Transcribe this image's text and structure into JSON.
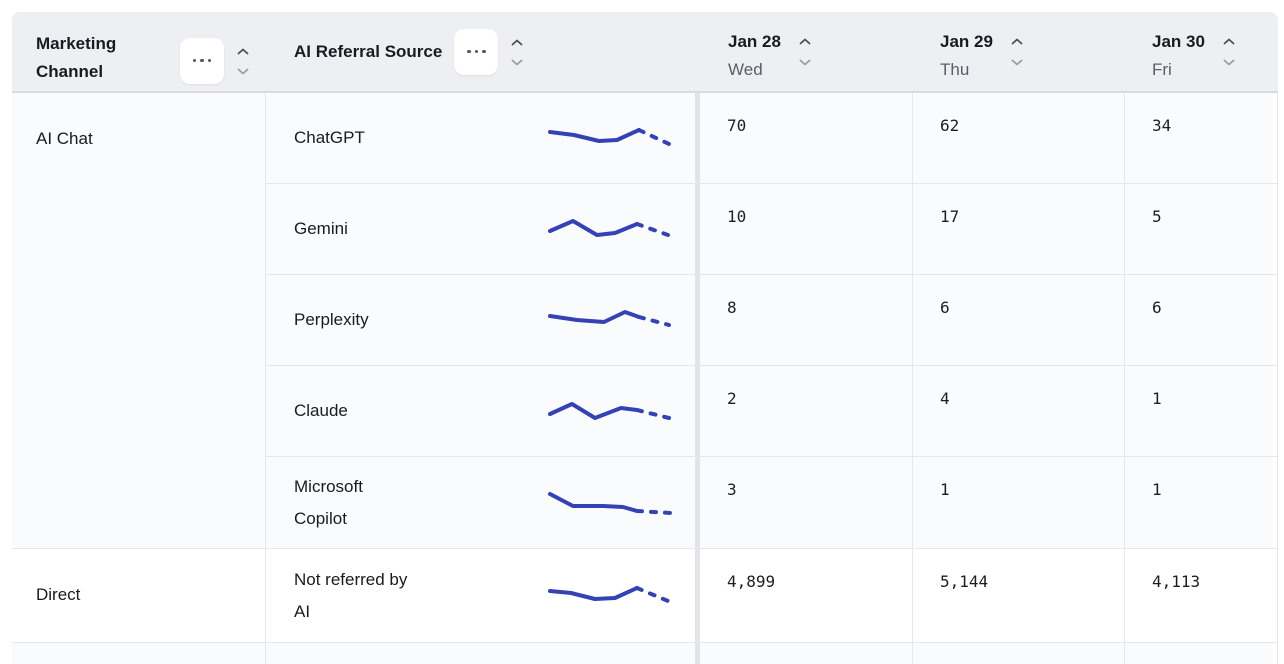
{
  "table": {
    "header": {
      "channel": {
        "label": "Marketing Channel"
      },
      "source": {
        "label": "AI Referral Source"
      },
      "dates": [
        {
          "date": "Jan 28",
          "day": "Wed"
        },
        {
          "date": "Jan 29",
          "day": "Thu"
        },
        {
          "date": "Jan 30",
          "day": "Fri"
        }
      ],
      "icons": {
        "more": "more-options-icon",
        "sort_up": "sort-ascending-icon",
        "sort_down": "sort-descending-icon"
      }
    },
    "groups": [
      {
        "channel": "AI Chat",
        "rows": [
          {
            "source": "ChatGPT",
            "values": [
              "70",
              "62",
              "34"
            ],
            "spark": {
              "solid": [
                [
                  3,
                  11
                ],
                [
                  27,
                  14
                ],
                [
                  52,
                  20
                ],
                [
                  70,
                  19
                ],
                [
                  92,
                  9
                ]
              ],
              "dashed": [
                [
                  92,
                  9
                ],
                [
                  122,
                  23
                ]
              ]
            }
          },
          {
            "source": "Gemini",
            "values": [
              "10",
              "17",
              "5"
            ],
            "spark": {
              "solid": [
                [
                  3,
                  19
                ],
                [
                  26,
                  9
                ],
                [
                  50,
                  23
                ],
                [
                  68,
                  21
                ],
                [
                  90,
                  12
                ]
              ],
              "dashed": [
                [
                  90,
                  12
                ],
                [
                  121,
                  23
                ]
              ]
            }
          },
          {
            "source": "Perplexity",
            "values": [
              "8",
              "6",
              "6"
            ],
            "spark": {
              "solid": [
                [
                  3,
                  13
                ],
                [
                  30,
                  17
                ],
                [
                  57,
                  19
                ],
                [
                  78,
                  9
                ],
                [
                  92,
                  14
                ]
              ],
              "dashed": [
                [
                  92,
                  14
                ],
                [
                  122,
                  22
                ]
              ]
            }
          },
          {
            "source": "Claude",
            "values": [
              "2",
              "4",
              "1"
            ],
            "spark": {
              "solid": [
                [
                  3,
                  20
                ],
                [
                  25,
                  10
                ],
                [
                  48,
                  24
                ],
                [
                  74,
                  14
                ],
                [
                  90,
                  16
                ]
              ],
              "dashed": [
                [
                  90,
                  16
                ],
                [
                  122,
                  24
                ]
              ]
            }
          },
          {
            "source": "Microsoft Copilot",
            "values": [
              "3",
              "1",
              "1"
            ],
            "spark": {
              "solid": [
                [
                  3,
                  8
                ],
                [
                  26,
                  20
                ],
                [
                  56,
                  20
                ],
                [
                  76,
                  21
                ],
                [
                  90,
                  25
                ]
              ],
              "dashed": [
                [
                  90,
                  25
                ],
                [
                  124,
                  27
                ]
              ]
            }
          }
        ]
      },
      {
        "channel": "Direct",
        "rows": [
          {
            "source": "Not referred by AI",
            "values": [
              "4,899",
              "5,144",
              "4,113"
            ],
            "spark": {
              "solid": [
                [
                  3,
                  12
                ],
                [
                  24,
                  14
                ],
                [
                  48,
                  20
                ],
                [
                  68,
                  19
                ],
                [
                  90,
                  9
                ]
              ],
              "dashed": [
                [
                  90,
                  9
                ],
                [
                  121,
                  22
                ]
              ]
            }
          }
        ]
      },
      {
        "channel": "",
        "rows": [
          {
            "source": "",
            "values": [
              "",
              "",
              ""
            ],
            "spark": null
          }
        ]
      }
    ],
    "colors": {
      "sparkline": "#3442b4",
      "header_bg": "#edeff3",
      "row_bg": "#fafbfc",
      "row_bg_alt": "#ffffff",
      "border": "#e5e7ea",
      "text": "#1a1b20",
      "text_secondary": "#5a5f67"
    }
  }
}
